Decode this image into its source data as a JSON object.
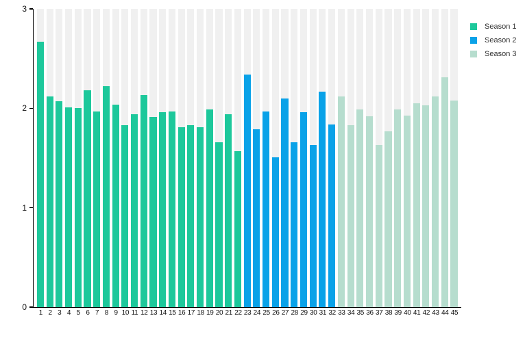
{
  "chart_data": {
    "type": "bar",
    "title": "",
    "xlabel": "",
    "ylabel": "",
    "ylim": [
      0,
      3
    ],
    "y_ticks": [
      "0",
      "1",
      "2",
      "3"
    ],
    "grid": false,
    "legend_position": "top-right",
    "track_color": "#f0f0f0",
    "axis_color": "#000000",
    "series": [
      {
        "name": "Season 1",
        "color": "#1dc89b",
        "episodes": [
          "1",
          "2",
          "3",
          "4",
          "5",
          "6",
          "7",
          "8",
          "9",
          "10",
          "11",
          "12",
          "13",
          "14",
          "15",
          "16",
          "17",
          "18",
          "19",
          "20",
          "21",
          "22"
        ],
        "values": [
          2.67,
          2.12,
          2.07,
          2.01,
          2.0,
          2.18,
          1.97,
          2.22,
          2.04,
          1.83,
          1.94,
          2.13,
          1.91,
          1.96,
          1.97,
          1.81,
          1.83,
          1.81,
          1.99,
          1.66,
          1.94,
          1.57
        ]
      },
      {
        "name": "Season 2",
        "color": "#0aa2e8",
        "episodes": [
          "23",
          "24",
          "25",
          "26",
          "27",
          "28",
          "29",
          "30",
          "31",
          "32"
        ],
        "values": [
          2.34,
          1.79,
          1.97,
          1.51,
          2.1,
          1.66,
          1.96,
          1.63,
          2.17,
          1.84
        ]
      },
      {
        "name": "Season 3",
        "color": "#b6ddce",
        "episodes": [
          "33",
          "34",
          "35",
          "36",
          "37",
          "38",
          "39",
          "40",
          "41",
          "42",
          "43",
          "44",
          "45"
        ],
        "values": [
          2.12,
          1.83,
          1.99,
          1.92,
          1.63,
          1.77,
          1.99,
          1.93,
          2.05,
          2.03,
          2.12,
          2.31,
          2.08
        ]
      }
    ]
  }
}
